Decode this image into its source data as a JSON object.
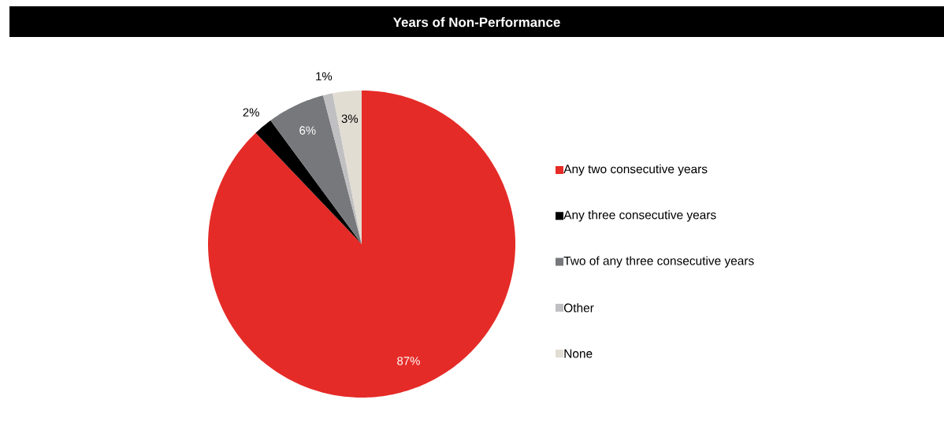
{
  "chart_data": {
    "type": "pie",
    "title": "Years of Non-Performance",
    "categories": [
      "Any two consecutive years",
      "Any three consecutive years",
      "Two of any three consecutive years",
      "Other",
      "None"
    ],
    "values": [
      87,
      2,
      6,
      1,
      3
    ],
    "colors": [
      "#e52b27",
      "#000000",
      "#77787b",
      "#c0c0c2",
      "#e2ddd3"
    ],
    "value_labels": [
      "87%",
      "2%",
      "6%",
      "1%",
      "3%"
    ],
    "legend": "right"
  }
}
